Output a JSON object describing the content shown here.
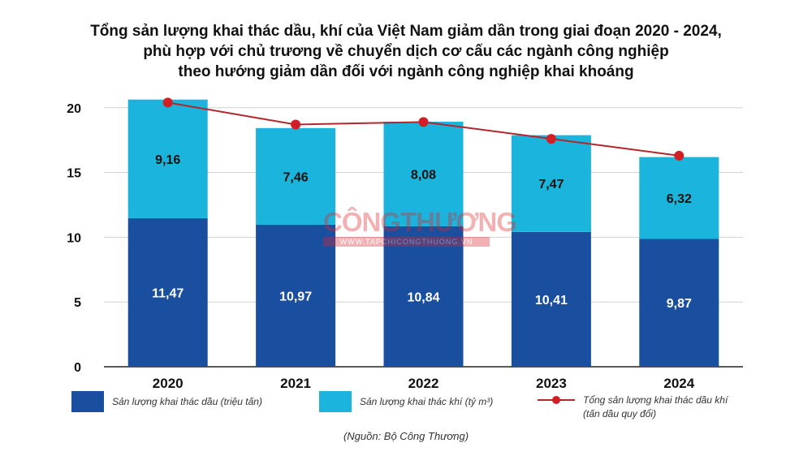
{
  "title_lines": [
    "Tổng sản lượng khai thác dầu, khí của Việt Nam giảm dần trong giai đoạn 2020 - 2024,",
    "phù hợp với chủ trương về chuyển dịch cơ cấu các ngành công nghiệp",
    "theo hướng giảm dần đối với ngành công nghiệp khai khoáng"
  ],
  "watermark": {
    "name": "CÔNGTHƯƠNG",
    "url": "WWW.TAPCHICONGTHUONG.VN"
  },
  "source": "(Nguồn: Bộ Công Thương)",
  "legend": {
    "oil": "Sản lượng khai thác dầu (triệu tấn)",
    "gas": "Sản lượng khai thác khí (tỷ m³)",
    "total_line1": "Tổng sản lượng khai thác dầu khí",
    "total_line2": "(tấn dầu quy đổi)"
  },
  "colors": {
    "oil": "#1a4fa0",
    "gas": "#1bb4dc",
    "total": "#b3262a",
    "marker": "#d21e24"
  },
  "chart_data": {
    "type": "bar",
    "stacked": true,
    "categories": [
      "2020",
      "2021",
      "2022",
      "2023",
      "2024"
    ],
    "series": [
      {
        "name": "Sản lượng khai thác dầu (triệu tấn)",
        "values": [
          11.47,
          10.97,
          10.84,
          10.41,
          9.87
        ],
        "labels": [
          "11,47",
          "10,97",
          "10,84",
          "10,41",
          "9,87"
        ]
      },
      {
        "name": "Sản lượng khai thác khí (tỷ m³)",
        "values": [
          9.16,
          7.46,
          8.08,
          7.47,
          6.32
        ],
        "labels": [
          "9,16",
          "7,46",
          "8,08",
          "7,47",
          "6,32"
        ]
      }
    ],
    "line": {
      "name": "Tổng sản lượng khai thác dầu khí (tấn dầu quy đổi)",
      "values": [
        20.4,
        18.7,
        18.9,
        17.6,
        16.3
      ]
    },
    "y_ticks": [
      0,
      5,
      10,
      15,
      20
    ],
    "ylim": [
      0,
      20.8
    ],
    "grid": true,
    "legend_position": "bottom"
  }
}
